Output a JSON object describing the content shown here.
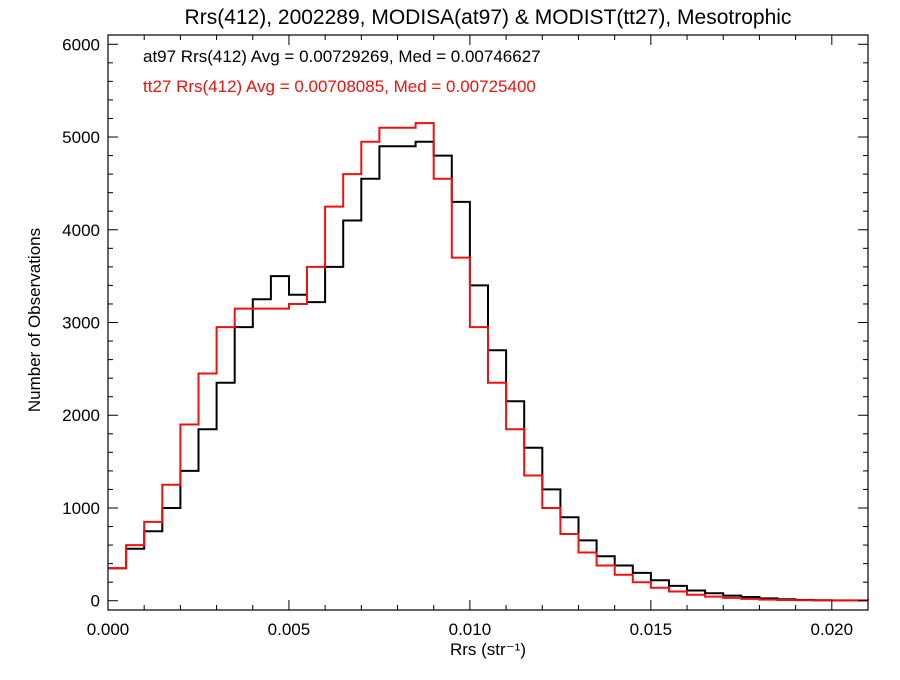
{
  "chart_data": {
    "type": "line",
    "title": "Rrs(412), 2002289, MODISA(at97) & MODIST(tt27), Mesotrophic",
    "xlabel": "Rrs (str⁻¹)",
    "ylabel": "Number of Observations",
    "xlim": [
      0.0,
      0.021
    ],
    "ylim": [
      -100,
      6100
    ],
    "xticks": [
      "0.000",
      "0.005",
      "0.010",
      "0.015",
      "0.020"
    ],
    "xtick_values": [
      0.0,
      0.005,
      0.01,
      0.015,
      0.02
    ],
    "yticks": [
      "0",
      "1000",
      "2000",
      "3000",
      "4000",
      "5000",
      "6000"
    ],
    "ytick_values": [
      0,
      1000,
      2000,
      3000,
      4000,
      5000,
      6000
    ],
    "grid": false,
    "step": true,
    "annotations": [
      {
        "text": "at97 Rrs(412) Avg = 0.00729269, Med = 0.00746627",
        "color": "#000000"
      },
      {
        "text": "tt27 Rrs(412) Avg = 0.00708085, Med = 0.00725400",
        "color": "#ee1111"
      }
    ],
    "series": [
      {
        "color": "#000000",
        "x": [
          0.0,
          0.0005,
          0.001,
          0.0015,
          0.002,
          0.0025,
          0.003,
          0.0035,
          0.004,
          0.0045,
          0.005,
          0.0055,
          0.006,
          0.0065,
          0.007,
          0.0075,
          0.008,
          0.0085,
          0.009,
          0.0095,
          0.01,
          0.0105,
          0.011,
          0.0115,
          0.012,
          0.0125,
          0.013,
          0.0135,
          0.014,
          0.0145,
          0.015,
          0.0155,
          0.016,
          0.0165,
          0.017,
          0.0175,
          0.018,
          0.0185,
          0.019,
          0.0195,
          0.02,
          0.021
        ],
        "y": [
          350,
          560,
          750,
          1000,
          1400,
          1850,
          2350,
          2950,
          3250,
          3500,
          3300,
          3220,
          3600,
          4100,
          4550,
          4900,
          4900,
          4950,
          4800,
          4300,
          3400,
          2700,
          2150,
          1650,
          1200,
          900,
          650,
          480,
          380,
          300,
          220,
          160,
          110,
          80,
          55,
          40,
          25,
          15,
          8,
          5,
          3,
          2
        ]
      },
      {
        "color": "#ee1111",
        "x": [
          0.0,
          0.0005,
          0.001,
          0.0015,
          0.002,
          0.0025,
          0.003,
          0.0035,
          0.004,
          0.0045,
          0.005,
          0.0055,
          0.006,
          0.0065,
          0.007,
          0.0075,
          0.008,
          0.0085,
          0.009,
          0.0095,
          0.01,
          0.0105,
          0.011,
          0.0115,
          0.012,
          0.0125,
          0.013,
          0.0135,
          0.014,
          0.0145,
          0.015,
          0.0155,
          0.016,
          0.0165,
          0.017,
          0.0175,
          0.018,
          0.0185,
          0.019,
          0.0195,
          0.02,
          0.021
        ],
        "y": [
          350,
          600,
          850,
          1250,
          1900,
          2450,
          2950,
          3150,
          3150,
          3150,
          3200,
          3600,
          4250,
          4600,
          4950,
          5100,
          5100,
          5150,
          4550,
          3700,
          2950,
          2350,
          1850,
          1350,
          1000,
          720,
          520,
          380,
          280,
          200,
          140,
          100,
          65,
          45,
          30,
          20,
          12,
          8,
          5,
          3,
          2,
          1
        ]
      }
    ]
  }
}
